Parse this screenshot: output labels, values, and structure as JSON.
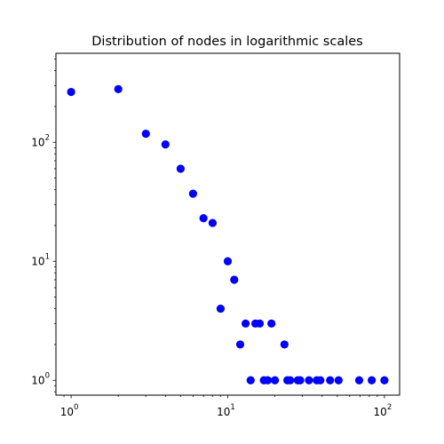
{
  "chart_data": {
    "type": "scatter",
    "title": "Distribution of nodes in logarithmic scales",
    "xlabel": "",
    "ylabel": "",
    "xscale": "log",
    "yscale": "log",
    "xlim": [
      0.8,
      125
    ],
    "ylim": [
      0.75,
      560
    ],
    "grid": false,
    "marker_color": "#0000ff",
    "x_ticks": [
      {
        "value": 1,
        "base": "10",
        "exp": "0"
      },
      {
        "value": 10,
        "base": "10",
        "exp": "1"
      },
      {
        "value": 100,
        "base": "10",
        "exp": "2"
      }
    ],
    "y_ticks": [
      {
        "value": 1,
        "base": "10",
        "exp": "0"
      },
      {
        "value": 10,
        "base": "10",
        "exp": "1"
      },
      {
        "value": 100,
        "base": "10",
        "exp": "2"
      }
    ],
    "points": [
      {
        "x": 1,
        "y": 265
      },
      {
        "x": 2,
        "y": 280
      },
      {
        "x": 3,
        "y": 118
      },
      {
        "x": 4,
        "y": 96
      },
      {
        "x": 5,
        "y": 60
      },
      {
        "x": 6,
        "y": 37
      },
      {
        "x": 7,
        "y": 23
      },
      {
        "x": 8,
        "y": 21
      },
      {
        "x": 9,
        "y": 4
      },
      {
        "x": 10,
        "y": 10
      },
      {
        "x": 11,
        "y": 7
      },
      {
        "x": 12,
        "y": 2
      },
      {
        "x": 13,
        "y": 3
      },
      {
        "x": 14,
        "y": 1
      },
      {
        "x": 15,
        "y": 3
      },
      {
        "x": 16,
        "y": 3
      },
      {
        "x": 17,
        "y": 1
      },
      {
        "x": 18,
        "y": 1
      },
      {
        "x": 19,
        "y": 3
      },
      {
        "x": 20,
        "y": 1
      },
      {
        "x": 23,
        "y": 2
      },
      {
        "x": 24,
        "y": 1
      },
      {
        "x": 25,
        "y": 1
      },
      {
        "x": 28,
        "y": 1
      },
      {
        "x": 29,
        "y": 1
      },
      {
        "x": 33,
        "y": 1
      },
      {
        "x": 37,
        "y": 1
      },
      {
        "x": 39,
        "y": 1
      },
      {
        "x": 45,
        "y": 1
      },
      {
        "x": 51,
        "y": 1
      },
      {
        "x": 69,
        "y": 1
      },
      {
        "x": 83,
        "y": 1
      },
      {
        "x": 100,
        "y": 1
      }
    ]
  }
}
